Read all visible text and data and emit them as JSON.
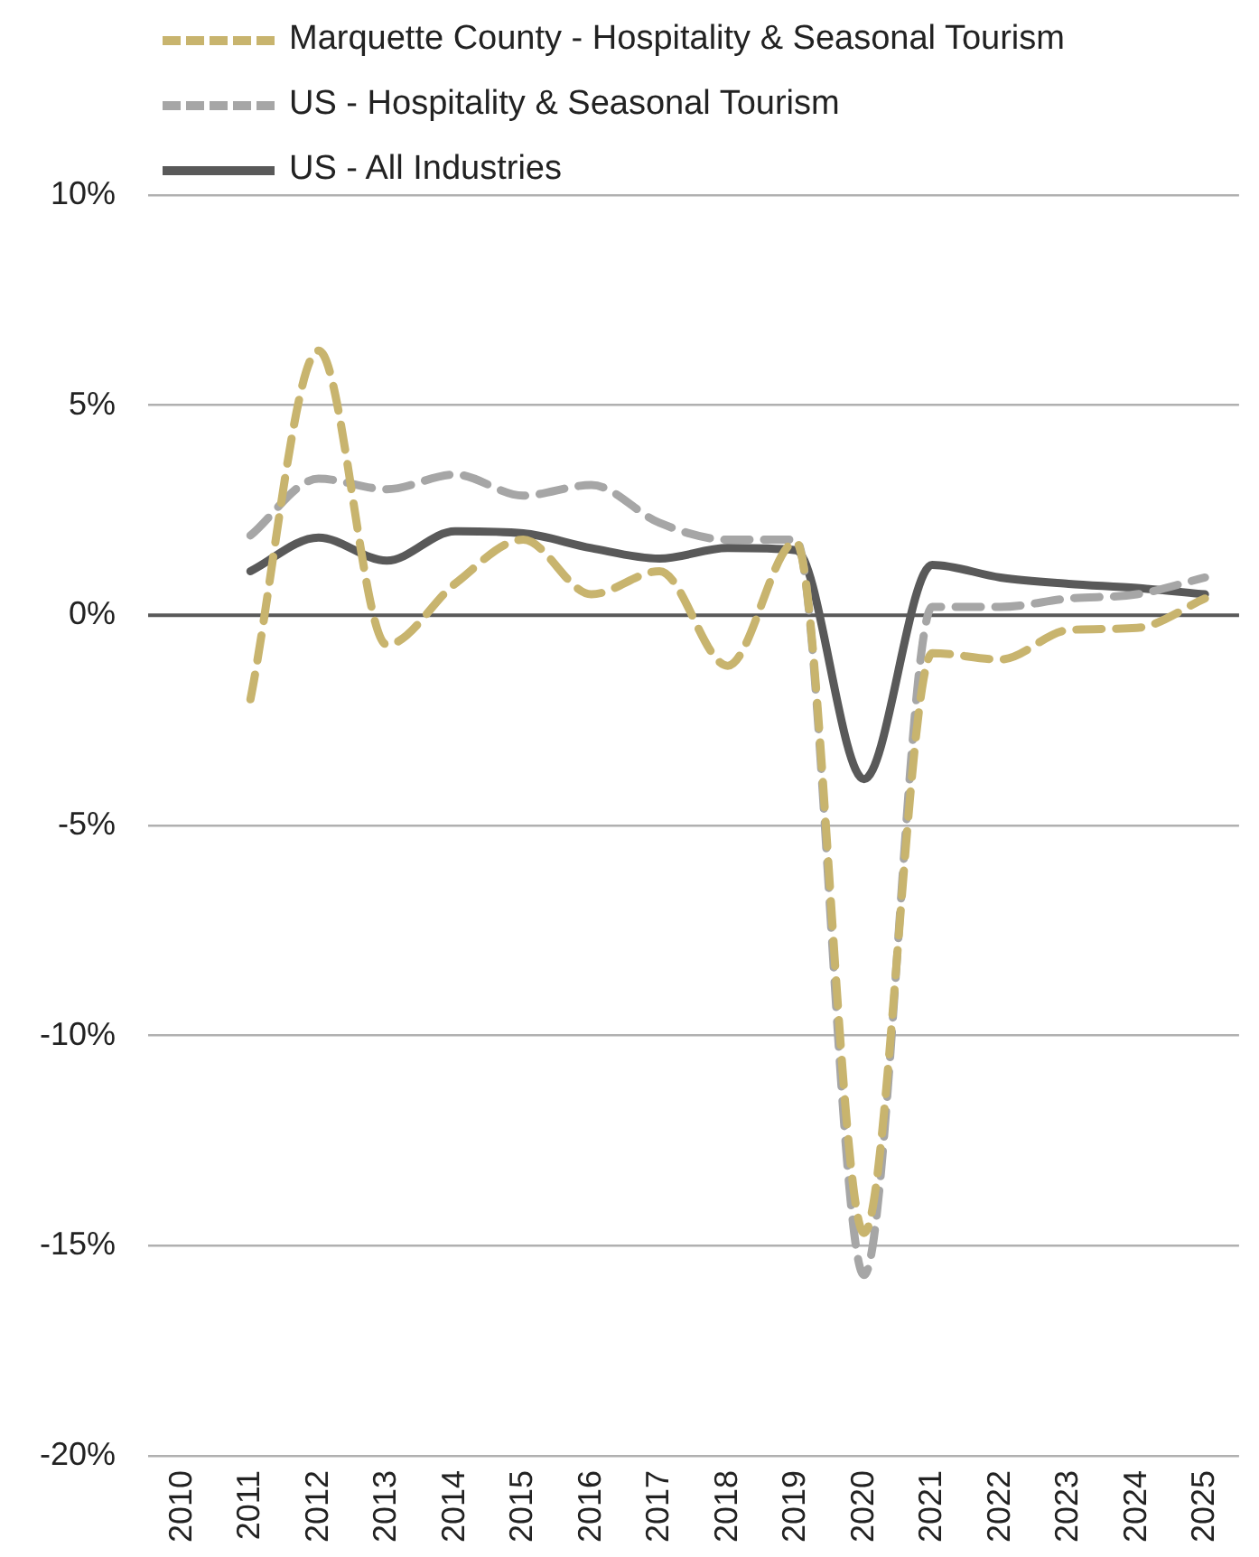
{
  "chart_data": {
    "type": "line",
    "categories": [
      "2010",
      "2011",
      "2012",
      "2013",
      "2014",
      "2015",
      "2016",
      "2017",
      "2018",
      "2019",
      "2020",
      "2021",
      "2022",
      "2023",
      "2024",
      "2025"
    ],
    "series": [
      {
        "name": "Marquette County - Hospitality & Seasonal Tourism",
        "color": "#c8b46e",
        "line_style": "dashed",
        "values": [
          null,
          -2.0,
          6.3,
          -0.7,
          0.75,
          1.8,
          0.5,
          1.05,
          -1.2,
          1.75,
          -14.7,
          -0.9,
          -1.05,
          -0.35,
          -0.3,
          0.4
        ]
      },
      {
        "name": "US - Hospitality & Seasonal Tourism",
        "color": "#a6a6a6",
        "line_style": "dashed",
        "values": [
          null,
          1.9,
          3.25,
          3.0,
          3.35,
          2.85,
          3.1,
          2.2,
          1.8,
          1.8,
          -15.7,
          0.2,
          0.2,
          0.4,
          0.5,
          0.9
        ]
      },
      {
        "name": "US - All Industries",
        "color": "#595959",
        "line_style": "solid",
        "values": [
          null,
          1.05,
          1.85,
          1.3,
          2.0,
          1.95,
          1.6,
          1.35,
          1.6,
          1.55,
          -3.9,
          1.2,
          0.9,
          0.75,
          0.65,
          0.5
        ]
      }
    ],
    "ylim": [
      -20,
      10
    ],
    "yticks": [
      {
        "value": -20,
        "label": "-20%"
      },
      {
        "value": -15,
        "label": "-15%"
      },
      {
        "value": -10,
        "label": "-10%"
      },
      {
        "value": -5,
        "label": "-5%"
      },
      {
        "value": 0,
        "label": "0%"
      },
      {
        "value": 5,
        "label": "5%"
      },
      {
        "value": 10,
        "label": "10%"
      }
    ],
    "ref_lines": [
      {
        "axis": "y",
        "value": 0,
        "color": "#595959"
      }
    ],
    "grid": "y",
    "legend": "top left",
    "marker": "none"
  }
}
